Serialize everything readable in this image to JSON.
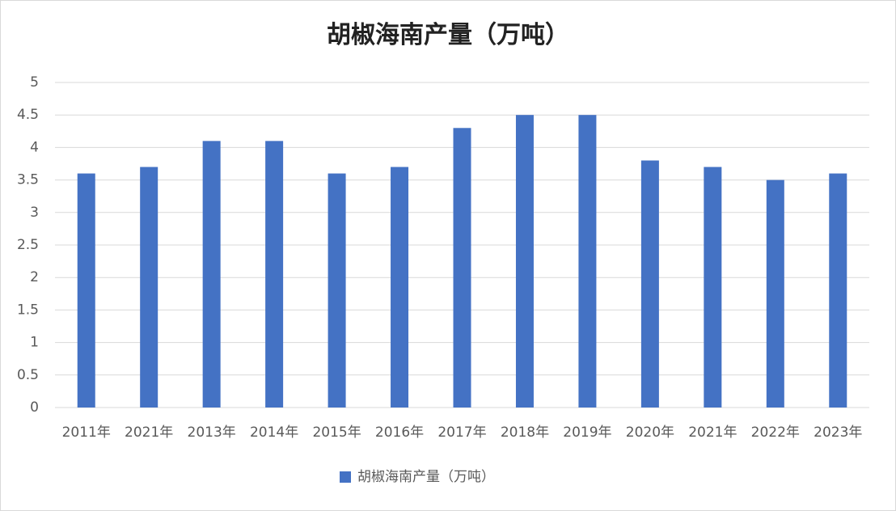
{
  "chart_data": {
    "type": "bar",
    "title": "胡椒海南产量（万吨）",
    "categories": [
      "2011年",
      "2021年",
      "2013年",
      "2014年",
      "2015年",
      "2016年",
      "2017年",
      "2018年",
      "2019年",
      "2020年",
      "2021年",
      "2022年",
      "2023年"
    ],
    "series": [
      {
        "name": "胡椒海南产量（万吨）",
        "color": "#4472c4",
        "values": [
          3.6,
          3.7,
          4.1,
          4.1,
          3.6,
          3.7,
          4.3,
          4.5,
          4.5,
          3.8,
          3.7,
          3.5,
          3.6
        ]
      }
    ],
    "ylim": [
      0,
      5
    ],
    "yticks": [
      0,
      0.5,
      1,
      1.5,
      2,
      2.5,
      3,
      3.5,
      4,
      4.5,
      5
    ],
    "grid": true,
    "legend": "bottom"
  }
}
